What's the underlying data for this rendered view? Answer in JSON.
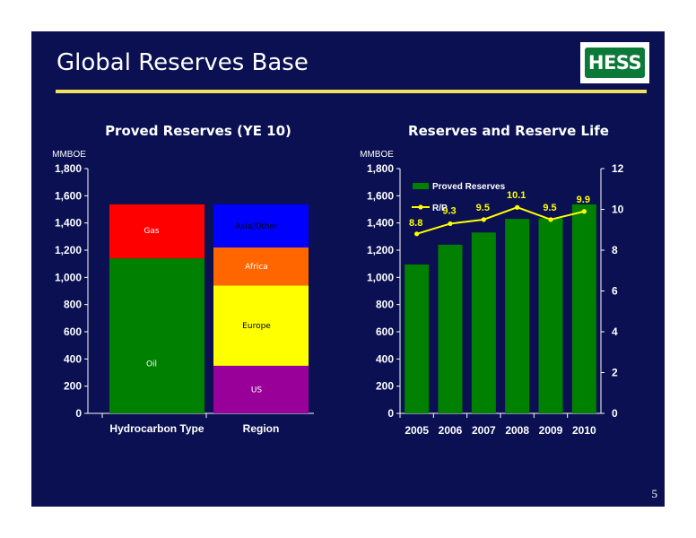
{
  "slide": {
    "title": "Global Reserves Base",
    "logo_text": "HESS",
    "page_number": "5",
    "colors": {
      "background": "#0a1052",
      "title_rule": "#f0e35b",
      "logo_green": "#0b7a38"
    }
  },
  "chart_data": [
    {
      "type": "bar",
      "stacked": true,
      "title": "Proved Reserves (YE 10)",
      "unit_label": "MMBOE",
      "ylim": [
        0,
        1800
      ],
      "y_ticks": [
        "0",
        "200",
        "400",
        "600",
        "800",
        "1,000",
        "1,200",
        "1,400",
        "1,600",
        "1,800"
      ],
      "categories": [
        "Hydrocarbon Type",
        "Region"
      ],
      "stacks": [
        {
          "category": "Hydrocarbon Type",
          "segments": [
            {
              "name": "Oil",
              "value": 1140,
              "color": "#008000"
            },
            {
              "name": "Gas",
              "value": 397,
              "color": "#ff0000"
            }
          ]
        },
        {
          "category": "Region",
          "segments": [
            {
              "name": "US",
              "value": 350,
              "color": "#990099"
            },
            {
              "name": "Europe",
              "value": 590,
              "color": "#ffff00"
            },
            {
              "name": "Africa",
              "value": 280,
              "color": "#ff6600"
            },
            {
              "name": "Asia/Other",
              "value": 317,
              "color": "#0000ff"
            }
          ]
        }
      ],
      "grid": false
    },
    {
      "type": "bar",
      "title": "Reserves and Reserve Life",
      "unit_label": "MMBOE",
      "categories": [
        "2005",
        "2006",
        "2007",
        "2008",
        "2009",
        "2010"
      ],
      "series": [
        {
          "name": "Proved Reserves",
          "type": "bar",
          "axis": "left",
          "values": [
            1095,
            1240,
            1330,
            1430,
            1435,
            1537
          ],
          "color": "#008000"
        },
        {
          "name": "R/P",
          "type": "line",
          "axis": "right",
          "values": [
            8.8,
            9.3,
            9.5,
            10.1,
            9.5,
            9.9
          ],
          "labels": [
            "8.8",
            "9.3",
            "9.5",
            "10.1",
            "9.5",
            "9.9"
          ],
          "color": "#ffff00"
        }
      ],
      "ylim": [
        0,
        1800
      ],
      "y_ticks": [
        "0",
        "200",
        "400",
        "600",
        "800",
        "1,000",
        "1,200",
        "1,400",
        "1,600",
        "1,800"
      ],
      "y2lim": [
        0,
        12
      ],
      "y2_ticks": [
        "0",
        "2",
        "4",
        "6",
        "8",
        "10",
        "12"
      ],
      "legend_position": "top-left",
      "grid": false
    }
  ]
}
